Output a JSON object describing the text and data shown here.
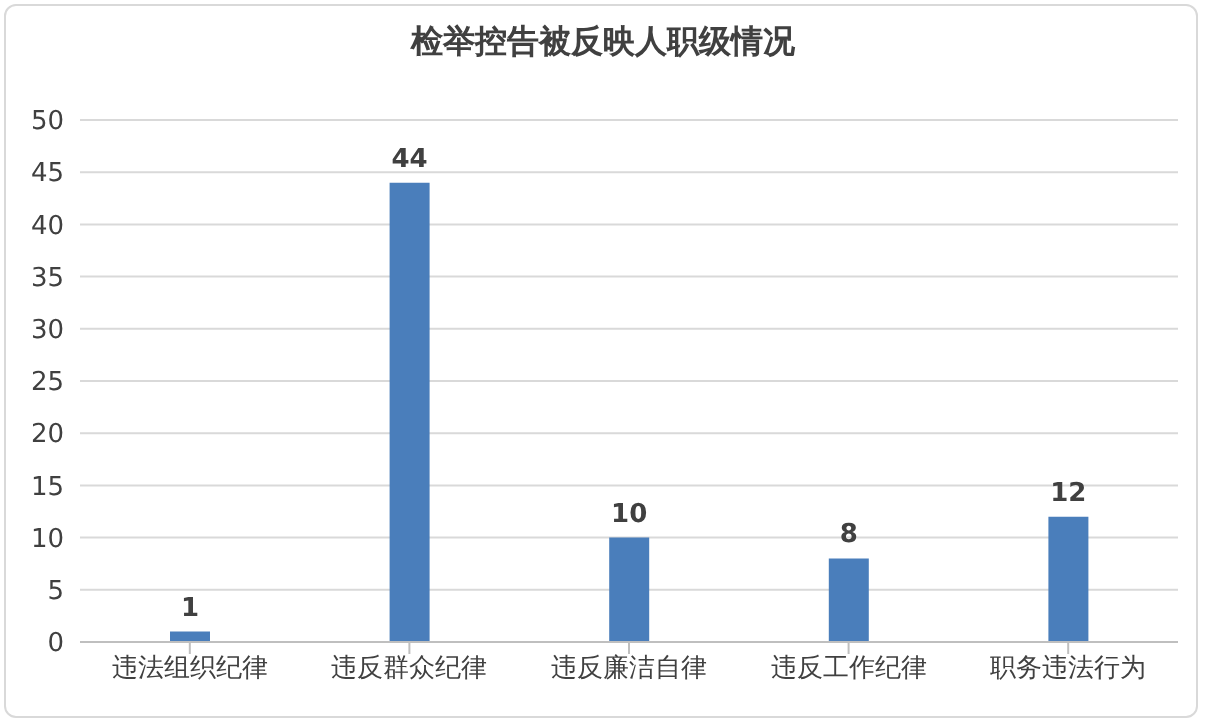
{
  "chart_data": {
    "type": "bar",
    "title": "检举控告被反映人职级情况",
    "categories": [
      "违法组织纪律",
      "违反群众纪律",
      "违反廉洁自律",
      "违反工作纪律",
      "职务违法行为"
    ],
    "values": [
      1,
      44,
      10,
      8,
      12
    ],
    "color": "#4a7ebb",
    "ylim": [
      0,
      50
    ],
    "yticks": [
      0,
      5,
      10,
      15,
      20,
      25,
      30,
      35,
      40,
      45,
      50
    ],
    "grid": "y",
    "data_labels": true
  }
}
